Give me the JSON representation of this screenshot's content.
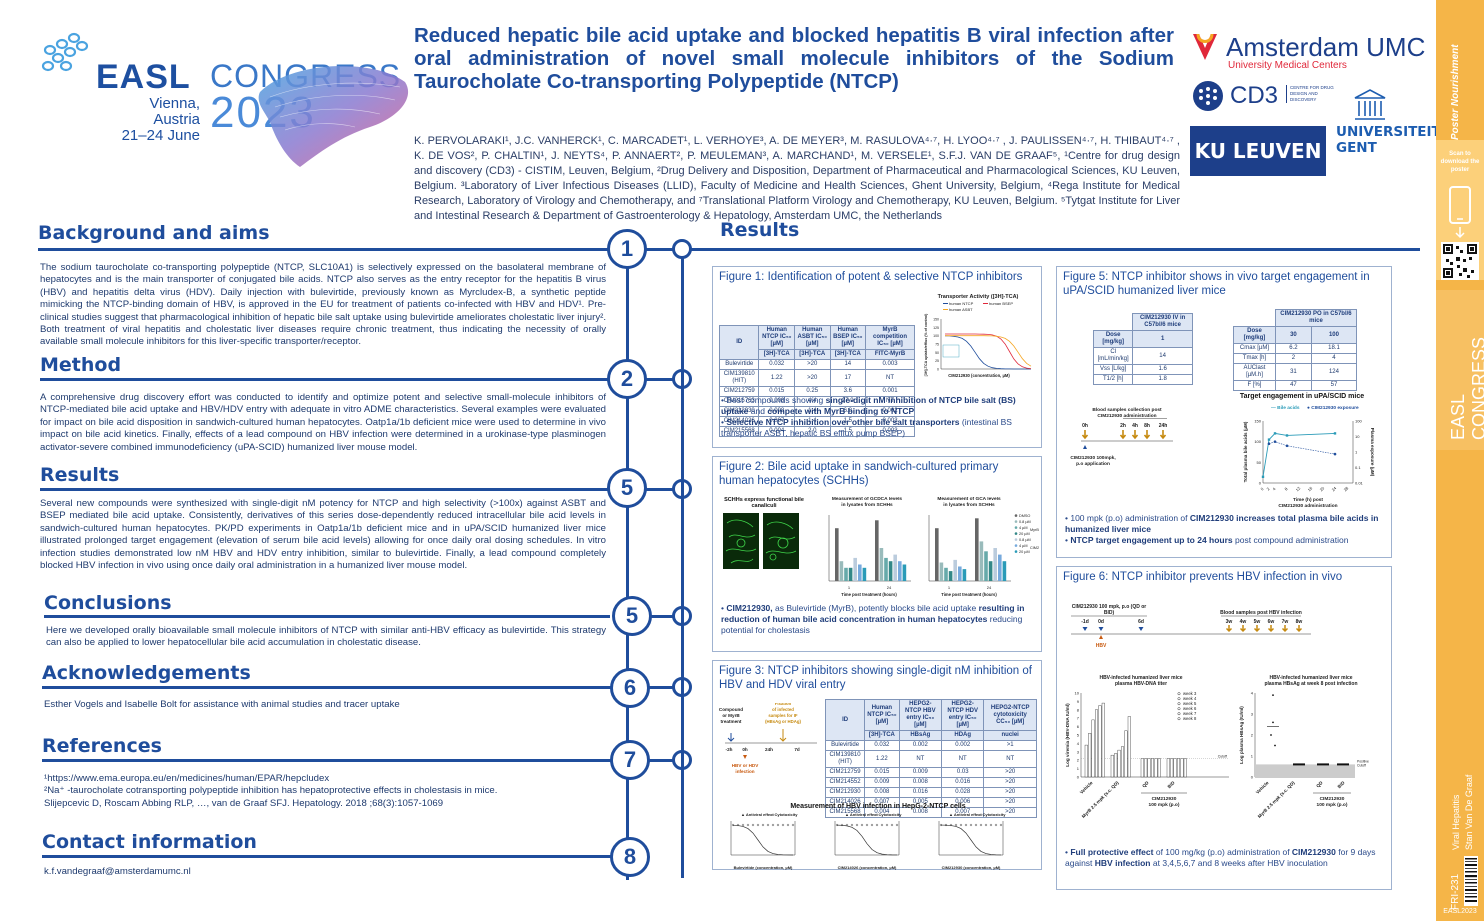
{
  "header": {
    "easl": "EASL",
    "congress": "CONGRESS",
    "venue_line1": "Vienna, Austria",
    "venue_line2": "21–24 June",
    "year": "2023",
    "title": "Reduced hepatic bile acid uptake and blocked hepatitis B viral infection after oral administration of novel small molecule inhibitors of the Sodium Taurocholate Co-transporting Polypeptide (NTCP)",
    "authors": "K. PERVOLARAKI¹, J.C. VANHERCK¹, C. MARCADET¹, L. VERHOYE³, A. DE MEYER³, M. RASULOVA⁴·⁷, H. LYOO⁴·⁷ , J. PAULISSEN⁴·⁷, H. THIBAUT⁴·⁷ , K. DE VOS², P. CHALTIN¹, J. NEYTS⁴, P. ANNAERT², P. MEULEMAN³, A. MARCHAND¹, M. VERSELE¹, S.F.J. VAN DE GRAAF⁵,",
    "affiliations": "¹Centre for drug design and discovery (CD3) - CISTIM, Leuven, Belgium, ²Drug Delivery and Disposition, Department of Pharmaceutical and Pharmacological Sciences, KU Leuven, Belgium. ³Laboratory of Liver Infectious Diseases (LLID), Faculty of Medicine and Health Sciences, Ghent University, Belgium, ⁴Rega Institute for Medical Research, Laboratory of Virology and Chemotherapy, and ⁷Translational Platform Virology and Chemotherapy, KU Leuven, Belgium. ⁵Tytgat Institute for Liver and Intestinal Research & Department of Gastroenterology & Hepatology, Amsterdam UMC, the Netherlands"
  },
  "logos": {
    "amsterdam": "Amsterdam UMC",
    "amsterdam_sub": "University Medical Centers",
    "cd3": "CD3",
    "cd3_sub": "CENTRE FOR DRUG DESIGN AND DISCOVERY",
    "kuleuven": "KU LEUVEN",
    "ugent1": "UNIVERSITEIT",
    "ugent2": "GENT"
  },
  "sections": [
    {
      "num": "1",
      "title": "Background and aims",
      "text": "The sodium taurocholate co-transporting polypeptide (NTCP, SLC10A1) is selectively expressed on the basolateral membrane of hepatocytes and is the main transporter of conjugated bile acids. NTCP also serves as the entry receptor for the hepatitis B virus (HBV) and hepatitis delta virus (HDV). Daily injection with bulevirtide, previously known as Myrcludex-B, a synthetic peptide mimicking the NTCP-binding domain of HBV, is approved in the EU for treatment of patients co-infected with HBV and HDV¹. Pre-clinical studies suggest that pharmacological inhibition of hepatic bile salt uptake using bulevirtide ameliorates cholestatic liver injury². Both treatment of viral hepatitis and cholestatic liver diseases require chronic treatment, thus indicating the necessity of orally available small molecule inhibitors for this liver-specific transporter/receptor."
    },
    {
      "num": "2",
      "title": "Method",
      "text": "A comprehensive drug discovery effort was conducted to identify and optimize potent and selective small-molecule inhibitors of NTCP-mediated bile acid uptake and HBV/HDV entry with adequate in vitro ADME characteristics. Several examples were evaluated for impact on bile acid disposition in sandwich-cultured human hepatocytes. Oatp1a/1b deficient mice were used to determine in vivo impact on bile acid kinetics. Finally, effects of a lead compound on HBV infection were determined in a urokinase-type plasminogen activator-severe combined immunodeficiency (uPA-SCID) humanized liver mouse model."
    },
    {
      "num": "5",
      "title": "Results",
      "text": "Several new compounds were synthesized with single-digit nM potency for NTCP and high selectivity (>100x) against ASBT and BSEP mediated bile acid uptake. Consistently, derivatives of this series dose-dependently reduced intracellular bile acid levels in sandwich-cultured human hepatocytes. PK/PD experiments in Oatp1a/1b deficient mice and in uPA/SCID humanized liver mice illustrated prolonged target engagement (elevation of serum bile acid levels) allowing for once daily oral dosing schedules. In vitro infection studies demonstrated low nM HBV and HDV entry inhibition, similar to bulevirtide. Finally, a lead compound completely blocked HBV infection in vivo using once daily oral administration in a humanized liver mouse model."
    },
    {
      "num": "5",
      "title": "Conclusions",
      "text": "Here we developed orally bioavailable small molecule inhibitors of NTCP with similar anti-HBV efficacy as bulevirtide. This strategy can also be applied to lower hepatocellular bile acid accumulation in cholestatic disease."
    },
    {
      "num": "6",
      "title": "Acknowledgements",
      "text": "Esther Vogels and Isabelle Bolt for assistance with animal studies and tracer uptake"
    },
    {
      "num": "7",
      "title": "References",
      "refs": [
        "¹https://www.ema.europa.eu/en/medicines/human/EPAR/hepcludex",
        "²Na⁺ -taurocholate cotransporting polypeptide inhibition has hepatoprotective effects in cholestasis in mice.",
        "Slijepcevic D, Roscam Abbing RLP, …, van de Graaf SFJ. Hepatology. 2018 ;68(3):1057-1069"
      ]
    },
    {
      "num": "8",
      "title": "Contact information",
      "text": "k.f.vandegraaf@amsterdamumc.nl"
    }
  ],
  "results_title": "Results",
  "fig1": {
    "title": "Figure 1: Identification of potent & selective NTCP inhibitors",
    "headers": [
      "ID",
      "Human NTCP IC₅₀ [µM]",
      "Human ASBT IC₅₀ [µM]",
      "Human BSEP IC₅₀ [µM]",
      "MyrB competition IC₅₀ [µM]"
    ],
    "subheaders": [
      "",
      "[3H]-TCA",
      "[3H]-TCA",
      "[3H]-TCA",
      "FITC-MyrB"
    ],
    "rows": [
      [
        "Bulevirtide",
        "0.032",
        ">20",
        "14",
        "0.003"
      ],
      [
        "CIM139810 (HIT)",
        "1.22",
        ">20",
        "17",
        "NT"
      ],
      [
        "CIM212759",
        "0.015",
        "0.25",
        "3.6",
        "0.001"
      ],
      [
        "CIM216763",
        "0.008",
        "4.4",
        "27.9",
        "NT"
      ],
      [
        "CIM212930",
        "0.008",
        "1.4",
        "6.8",
        "0.002"
      ],
      [
        "CIM214026",
        "0.007",
        "1.4",
        "1.5",
        "0.003"
      ],
      [
        "CIM215568",
        "0.004",
        "2.0",
        "1.5",
        "0.003"
      ]
    ],
    "chart_title": "Transporter Activity ([3H]-TCA)",
    "legend": [
      "human NTCP",
      "human BSEP",
      "human ASBT"
    ],
    "xlabel": "CIM212930 (concentration, µM)",
    "ylabel": "[3H]-TCA uptake/efflux (% of control)",
    "bullets": [
      [
        "Best compounds showing ",
        "single-digit nM inhibition of NTCP bile salt (BS) uptake",
        " and ",
        "compete with MyrB binding to NTCP"
      ],
      [
        "",
        "Selective NTCP inhibition over other bile salt transporters",
        " (intestinal BS transporter ASBT, hepatic BS efflux pump BSEP)",
        ""
      ]
    ]
  },
  "fig2": {
    "title": "Figure 2: Bile acid uptake in sandwich-cultured primary human hepatocytes (SCHHs)",
    "panel_a": "SCHHs express functional bile canaliculi",
    "panel_b": "Measurement of GCDCA levels in lysates from SCHHs",
    "panel_c": "Measurement of GCA levels in lysates from SCHHs",
    "xlabel": "Time post treatment (hours)",
    "legend": [
      "DMSO",
      "0.8 µM",
      "4 µM",
      "20 µM",
      "0.8 µM",
      "4 µM",
      "20 µM"
    ],
    "legend_groups": [
      "MyrB",
      "CIM212930"
    ],
    "bullet": [
      "CIM212930,",
      " as Bulevirtide (MyrB), potently blocks bile acid uptake ",
      "resulting in reduction of human bile acid concentration in human hepatocytes",
      " reducing potential for cholestasis"
    ]
  },
  "fig3": {
    "title": "Figure 3: NTCP inhibitors showing single-digit nM inhibition of HBV and HDV viral entry",
    "headers": [
      "ID",
      "Human NTCP IC₅₀ [µM]",
      "HEPG2-NTCP HBV entry IC₅₀ [µM]",
      "HEPG2-NTCP HDV entry IC₅₀ [µM]",
      "HEPG2-NTCP cytotoxicity CC₅₀ [µM]"
    ],
    "subheaders": [
      "",
      "[3H]-TCA",
      "HBsAg",
      "HDAg",
      "nuclei"
    ],
    "rows": [
      [
        "Bulevirtide",
        "0.032",
        "0.002",
        "0.002",
        ">1"
      ],
      [
        "CIM139810 (HIT)",
        "1.22",
        "NT",
        "NT",
        "NT"
      ],
      [
        "CIM212759",
        "0.015",
        "0.009",
        "0.03",
        ">20"
      ],
      [
        "CIM214552",
        "0.009",
        "0.008",
        "0.016",
        ">20"
      ],
      [
        "CIM212930",
        "0.008",
        "0.016",
        "0.028",
        ">20"
      ],
      [
        "CIM214026",
        "0.007",
        "0.005",
        "0.006",
        ">20"
      ],
      [
        "CIM215568",
        "0.004",
        "0.008",
        "0.007",
        ">20"
      ]
    ],
    "timeline": [
      "Compound or MyrB treatment",
      "Fixation of infected samples for IF (HBsAg or HDAg)",
      "HBV or HDV infection"
    ],
    "chart_title": "Measurement of HBV infection in HepG-2-NTCP cells",
    "legend": [
      "Antiviral effect",
      "Cytotoxicity"
    ],
    "xlabels": [
      "Bulevirtide (concentration, µM)",
      "CIM214026 (concentration, µM)",
      "CIM212930 (concentration, µM)"
    ]
  },
  "fig5": {
    "title": "Figure 5: NTCP inhibitor shows in vivo target engagement in uPA/SCID humanized liver mice",
    "iv_header": "CIM212930 IV in C57bl/6 mice",
    "iv_rows": [
      [
        "Dose [mg/kg]",
        "1"
      ],
      [
        "Cl [mL/min/kg]",
        "14"
      ],
      [
        "Vss [L/kg]",
        "1.6"
      ],
      [
        "T1/2 [h]",
        "1.8"
      ]
    ],
    "po_header": "CIM212930 PO in C57bl/6 mice",
    "po_rows": [
      [
        "Dose [mg/kg]",
        "30",
        "100"
      ],
      [
        "Cmax [µM]",
        "6.2",
        "18.1"
      ],
      [
        "Tmax [h]",
        "2",
        "4"
      ],
      [
        "AUClast [µM.h]",
        "31",
        "124"
      ],
      [
        "F [%]",
        "47",
        "57"
      ]
    ],
    "chart_title": "Target engagement in uPA/SCID mice",
    "timeline_title": "Blood samples collection post CIM212930 administration",
    "timeline_points": [
      "0h",
      "2h",
      "4h",
      "8h",
      "24h"
    ],
    "dose_label": "CIM212930 100mpk, p.o application",
    "legend": [
      "Bile acids",
      "CIM212930 exposure"
    ],
    "xlabel": "Time (h) post CIM212930 administration",
    "ylabel": "Total plasma bile acids (µM)",
    "ylabel2": "Plasma exposure (µM)",
    "bullets": [
      [
        "100 mpk (p.o) administration of ",
        "CIM212930 increases total plasma bile acids in humanized liver mice"
      ],
      [
        "NTCP target engagement up to 24 hours",
        " post compound administration"
      ]
    ]
  },
  "fig6": {
    "title": "Figure 6: NTCP inhibitor prevents HBV infection in vivo",
    "dosing": "CIM212930 100 mpk, p.o (QD or BID) or MyrB 2.5 mpk s.c (QD) application",
    "days": [
      "-1d",
      "0d",
      "6d"
    ],
    "hbv": "HBV",
    "blood": "Blood samples post HBV infection",
    "weeks": [
      "3w",
      "4w",
      "5w",
      "6w",
      "7w",
      "8w"
    ],
    "panel_a": "HBV-infected humanized liver mice plasma HBV-DNA titer",
    "panel_b": "HBV-infected humanized liver mice plasma HBsAg at week 8 post infection",
    "legend": [
      "week 3",
      "week 4",
      "week 5",
      "week 6",
      "week 7",
      "week 8"
    ],
    "xcats": [
      "Vehicle",
      "MyrB 2.5 mpk (s.c. QD)",
      "QD",
      "BID"
    ],
    "group": "CIM212930 100 mpk (p.o)",
    "ylabel_a": "Log viremia (HBV-DNA IU/ml)",
    "ylabel_b": "Log plasma HBsAg (IU/ml)",
    "cutoff": "Cutoff",
    "bullet": [
      "Full protective effect",
      " of 100 mg/kg (p.o) administration of ",
      "CIM212930",
      " for 9 days against ",
      "HBV infection",
      " at 3,4,5,6,7 and 8 weeks after HBV inoculation"
    ]
  },
  "sidebar": {
    "top": "Poster Nourishment",
    "scan": "Scan to download the poster",
    "congress": "EASL CONGRESS 2023",
    "easl_bottom": "EASL",
    "authors_v": "Viral Hepatitis",
    "name_v": "Stan Van De Graaf",
    "code": "FRI-231",
    "footer": "EASL2023"
  },
  "colors": {
    "primary": "#1f4d9c",
    "accent": "#f5b548",
    "red": "#e0283a",
    "teal": "#2a9bb8"
  }
}
